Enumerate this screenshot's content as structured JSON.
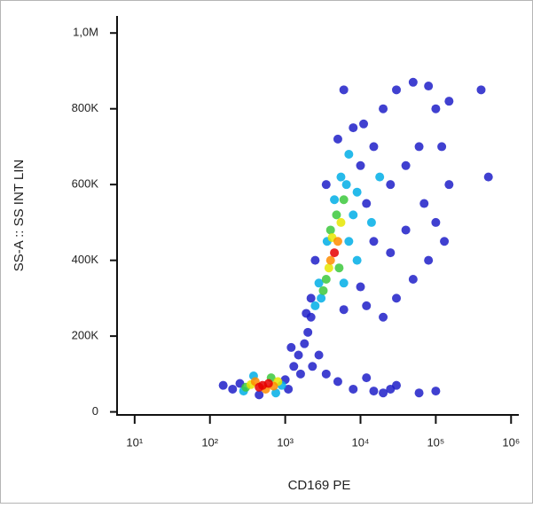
{
  "chart_data": {
    "type": "scatter",
    "xlabel": "CD169 PE",
    "ylabel": "SS-A :: SS INT LIN",
    "xscale": "log",
    "xlim": [
      6,
      1200000
    ],
    "xticks": [
      {
        "value": 10,
        "label": "10¹"
      },
      {
        "value": 100,
        "label": "10²"
      },
      {
        "value": 1000,
        "label": "10³"
      },
      {
        "value": 10000,
        "label": "10⁴"
      },
      {
        "value": 100000,
        "label": "10⁵"
      },
      {
        "value": 1000000,
        "label": "10⁶"
      }
    ],
    "ylim": [
      -8000,
      1045000
    ],
    "yticks": [
      0,
      {
        "value": 200000,
        "label": "200K"
      },
      {
        "value": 400000,
        "label": "400K"
      },
      {
        "value": 600000,
        "label": "600K"
      },
      {
        "value": 800000,
        "label": "800K"
      },
      {
        "value": 1000000,
        "label": "1,0M"
      }
    ],
    "x": [
      250,
      1000,
      200,
      150,
      1100,
      450,
      1300,
      1500,
      1800,
      2000,
      2200,
      1600,
      1200,
      2800,
      1900,
      2300,
      5000,
      8000,
      15000,
      20000,
      30000,
      12000,
      3500,
      25000,
      60000,
      100000,
      10000,
      15000,
      20000,
      30000,
      50000,
      80000,
      100000,
      120000,
      150000,
      100000,
      80000,
      50000,
      30000,
      20000,
      12000,
      8000,
      6000,
      5000,
      12000,
      25000,
      40000,
      60000,
      40000,
      70000,
      15000,
      25000,
      10000,
      11000,
      2500,
      2200,
      150000,
      3500,
      6000,
      130000,
      400000,
      500000,
      900,
      280,
      380,
      750,
      2500,
      6500,
      3000,
      7000,
      8000,
      3600,
      5500,
      4500,
      9000,
      6000,
      2800,
      7000,
      9000,
      14000,
      18000,
      300,
      650,
      3500,
      4800,
      6000,
      3200,
      5200,
      4000,
      350,
      800,
      3800,
      4200,
      5500,
      550,
      400,
      700,
      4000,
      5000,
      500,
      450,
      600,
      4500
    ],
    "y": [
      75000,
      85000,
      60000,
      70000,
      60000,
      45000,
      120000,
      150000,
      180000,
      210000,
      250000,
      100000,
      170000,
      150000,
      260000,
      120000,
      80000,
      60000,
      55000,
      50000,
      70000,
      90000,
      100000,
      60000,
      50000,
      55000,
      650000,
      700000,
      800000,
      850000,
      870000,
      860000,
      800000,
      700000,
      600000,
      500000,
      400000,
      350000,
      300000,
      250000,
      280000,
      750000,
      850000,
      720000,
      550000,
      600000,
      650000,
      700000,
      480000,
      550000,
      450000,
      420000,
      330000,
      760000,
      400000,
      300000,
      820000,
      600000,
      270000,
      450000,
      850000,
      620000,
      70000,
      55000,
      95000,
      50000,
      280000,
      600000,
      300000,
      450000,
      520000,
      450000,
      620000,
      560000,
      400000,
      340000,
      340000,
      680000,
      580000,
      500000,
      620000,
      65000,
      90000,
      350000,
      520000,
      560000,
      320000,
      380000,
      480000,
      72000,
      80000,
      380000,
      460000,
      500000,
      60000,
      80000,
      68000,
      400000,
      450000,
      70000,
      65000,
      75000,
      420000
    ],
    "colors": [
      "#1e1ec8",
      "#1e1ec8",
      "#1e1ec8",
      "#1e1ec8",
      "#1e1ec8",
      "#1e1ec8",
      "#1e1ec8",
      "#1e1ec8",
      "#1e1ec8",
      "#1e1ec8",
      "#1e1ec8",
      "#1e1ec8",
      "#1e1ec8",
      "#1e1ec8",
      "#1e1ec8",
      "#1e1ec8",
      "#1e1ec8",
      "#1e1ec8",
      "#1e1ec8",
      "#1e1ec8",
      "#1e1ec8",
      "#1e1ec8",
      "#1e1ec8",
      "#1e1ec8",
      "#1e1ec8",
      "#1e1ec8",
      "#1e1ec8",
      "#1e1ec8",
      "#1e1ec8",
      "#1e1ec8",
      "#1e1ec8",
      "#1e1ec8",
      "#1e1ec8",
      "#1e1ec8",
      "#1e1ec8",
      "#1e1ec8",
      "#1e1ec8",
      "#1e1ec8",
      "#1e1ec8",
      "#1e1ec8",
      "#1e1ec8",
      "#1e1ec8",
      "#1e1ec8",
      "#1e1ec8",
      "#1e1ec8",
      "#1e1ec8",
      "#1e1ec8",
      "#1e1ec8",
      "#1e1ec8",
      "#1e1ec8",
      "#1e1ec8",
      "#1e1ec8",
      "#1e1ec8",
      "#1e1ec8",
      "#1e1ec8",
      "#1e1ec8",
      "#1e1ec8",
      "#1e1ec8",
      "#1e1ec8",
      "#1e1ec8",
      "#1e1ec8",
      "#1e1ec8",
      "#00aee6",
      "#00aee6",
      "#00aee6",
      "#00aee6",
      "#00aee6",
      "#00aee6",
      "#00aee6",
      "#00aee6",
      "#00aee6",
      "#00aee6",
      "#00aee6",
      "#00aee6",
      "#00aee6",
      "#00aee6",
      "#00aee6",
      "#00aee6",
      "#00aee6",
      "#00aee6",
      "#00aee6",
      "#3cc83c",
      "#3cc83c",
      "#3cc83c",
      "#3cc83c",
      "#3cc83c",
      "#3cc83c",
      "#3cc83c",
      "#3cc83c",
      "#e6e600",
      "#e6e600",
      "#e6e600",
      "#e6e600",
      "#e6e600",
      "#ff8c00",
      "#ff8c00",
      "#ff8c00",
      "#ff8c00",
      "#ff8c00",
      "#e60000",
      "#e60000",
      "#e60000",
      "#e60000"
    ]
  }
}
